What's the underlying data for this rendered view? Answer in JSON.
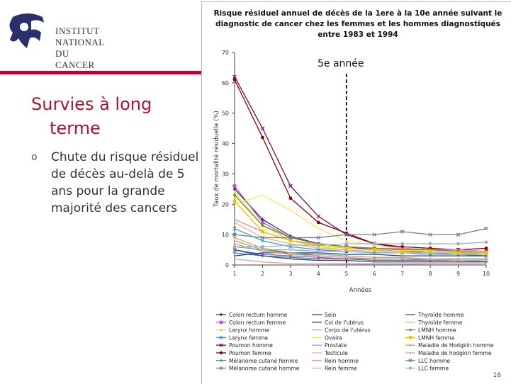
{
  "logo": {
    "line1": "Institut",
    "line2": "National",
    "line3": "du Cancer"
  },
  "slide": {
    "title_line1": "Survies à long",
    "title_line2": "terme",
    "bullet_mark": "o",
    "bullet": "Chute du risque résiduel de décès au-delà de 5 ans pour la grande majorité des cancers",
    "page_number": "16"
  },
  "colors": {
    "brand_red": "#c0002b"
  },
  "chart_data": {
    "type": "line",
    "title": "Risque résiduel annuel de décès de la 1ere à la 10e année suivant le diagnostic de cancer chez les femmes et les hommes diagnostiqués entre 1983 et 1994",
    "ylabel": "Taux de mortalité résiduelle (%)",
    "xlabel": "Années",
    "ylim": [
      0,
      70
    ],
    "yticks": [
      0,
      10,
      20,
      30,
      40,
      50,
      60,
      70
    ],
    "x": [
      1,
      2,
      3,
      4,
      5,
      6,
      7,
      8,
      9,
      10
    ],
    "annotation": {
      "text": "5e année",
      "x": 5
    },
    "legend_position": "bottom",
    "series": [
      {
        "name": "Colon rectum homme",
        "color": "#1f2f8f",
        "marker": "diamond",
        "values": [
          25,
          15,
          9.5,
          7,
          6,
          5,
          4.5,
          4,
          4,
          4
        ]
      },
      {
        "name": "Colon rectum femme",
        "color": "#c04fc0",
        "marker": "square",
        "values": [
          26,
          14,
          9,
          7,
          6,
          5.5,
          5,
          5,
          4.5,
          4
        ]
      },
      {
        "name": "Larynx homme",
        "color": "#e6e600",
        "marker": "triangle",
        "values": [
          24,
          13,
          8,
          6,
          5,
          4.5,
          4,
          4,
          3.5,
          3.5
        ]
      },
      {
        "name": "Larynx femme",
        "color": "#3a9bdc",
        "marker": "x",
        "values": [
          12,
          8,
          6,
          5,
          4.5,
          4,
          4,
          3.5,
          3.5,
          3
        ]
      },
      {
        "name": "Poumon homme",
        "color": "#6a0d5e",
        "marker": "x",
        "values": [
          62,
          45,
          26,
          16,
          10,
          7,
          5.5,
          5,
          5,
          4.5
        ]
      },
      {
        "name": "Poumon femme",
        "color": "#8b0000",
        "marker": "circle",
        "values": [
          61,
          42,
          22,
          14,
          10.5,
          7,
          6,
          5.5,
          5,
          5.5
        ]
      },
      {
        "name": "Mélanome cutané femme",
        "color": "#3c7f9f",
        "marker": "plus",
        "values": [
          4,
          3,
          2.5,
          2,
          2,
          1.5,
          1.5,
          1.5,
          1.5,
          1
        ]
      },
      {
        "name": "Mélanome cutané homme",
        "color": "#8c6bb1",
        "marker": "x",
        "values": [
          5,
          3.5,
          3,
          2.5,
          2,
          2,
          2,
          1.5,
          1.5,
          1.5
        ]
      },
      {
        "name": "Sein",
        "color": "#0044cc",
        "marker": "none",
        "values": [
          3,
          4,
          4,
          4,
          3.5,
          3.5,
          3,
          3,
          3,
          3
        ]
      },
      {
        "name": "Col de l'utérus",
        "color": "#404040",
        "marker": "none",
        "values": [
          8,
          5,
          4,
          3,
          2.5,
          2,
          2,
          2,
          1.5,
          1.5
        ]
      },
      {
        "name": "Corps de l'utérus",
        "color": "#9acd32",
        "marker": "none",
        "values": [
          7,
          4.5,
          3.5,
          3,
          2.5,
          2,
          2,
          2,
          2,
          2
        ]
      },
      {
        "name": "Ovaire",
        "color": "#f2e85c",
        "marker": "none",
        "values": [
          20,
          23,
          18,
          12,
          8,
          6.5,
          5.5,
          5,
          5,
          4.5
        ]
      },
      {
        "name": "Prostate",
        "color": "#7fa7d1",
        "marker": "none",
        "values": [
          6,
          5,
          5,
          4.5,
          4.5,
          4,
          4,
          4,
          3.5,
          3.5
        ]
      },
      {
        "name": "Testicule",
        "color": "#c9b4e6",
        "marker": "none",
        "values": [
          2,
          1,
          0.5,
          0.5,
          0.3,
          0.3,
          0.3,
          0.2,
          0.2,
          0.2
        ]
      },
      {
        "name": "Rein homme",
        "color": "#d983c9",
        "marker": "none",
        "values": [
          15,
          11,
          8,
          7,
          6,
          5.5,
          5.5,
          5,
          5,
          4.5
        ]
      },
      {
        "name": "Rein femme",
        "color": "#f0b27a",
        "marker": "none",
        "values": [
          14,
          9,
          7,
          5.5,
          5,
          4.5,
          4,
          4,
          4,
          3.5
        ]
      },
      {
        "name": "Thyroïde homme",
        "color": "#2c4f7c",
        "marker": "none",
        "values": [
          5,
          3,
          2,
          1.5,
          1.5,
          1,
          1,
          1,
          1,
          1
        ]
      },
      {
        "name": "Thyroïde femme",
        "color": "#f5a5a5",
        "marker": "none",
        "values": [
          2,
          1,
          0.5,
          0.5,
          0.5,
          0.5,
          0.5,
          0.5,
          0.5,
          0.5
        ]
      },
      {
        "name": "LMNH homme",
        "color": "#6b8e23",
        "marker": "diamond",
        "values": [
          23,
          13,
          9,
          7,
          6,
          5.5,
          5,
          5,
          4.5,
          4
        ]
      },
      {
        "name": "LMNH femme",
        "color": "#f0c000",
        "marker": "square",
        "values": [
          21,
          11,
          8,
          6.5,
          5.5,
          5,
          4.5,
          4.5,
          4,
          4
        ]
      },
      {
        "name": "Maladie de Hodgkin homme",
        "color": "#c8a060",
        "marker": "plus",
        "values": [
          9,
          5.5,
          4,
          3.5,
          3,
          2.5,
          2.5,
          2,
          2,
          2
        ]
      },
      {
        "name": "Maladie de hodgkin femme",
        "color": "#e8a0a0",
        "marker": "dot",
        "values": [
          8,
          5,
          3.5,
          3,
          2.5,
          2,
          2,
          2,
          1.5,
          1.5
        ]
      },
      {
        "name": "LLC homme",
        "color": "#708090",
        "marker": "x",
        "values": [
          10,
          9,
          9,
          9,
          10,
          10,
          11,
          10,
          10,
          12
        ]
      },
      {
        "name": "LLC femme",
        "color": "#9ab0c0",
        "marker": "circle",
        "values": [
          6,
          6,
          6.5,
          6.5,
          7,
          7,
          7,
          7,
          7,
          7.5
        ]
      }
    ]
  }
}
